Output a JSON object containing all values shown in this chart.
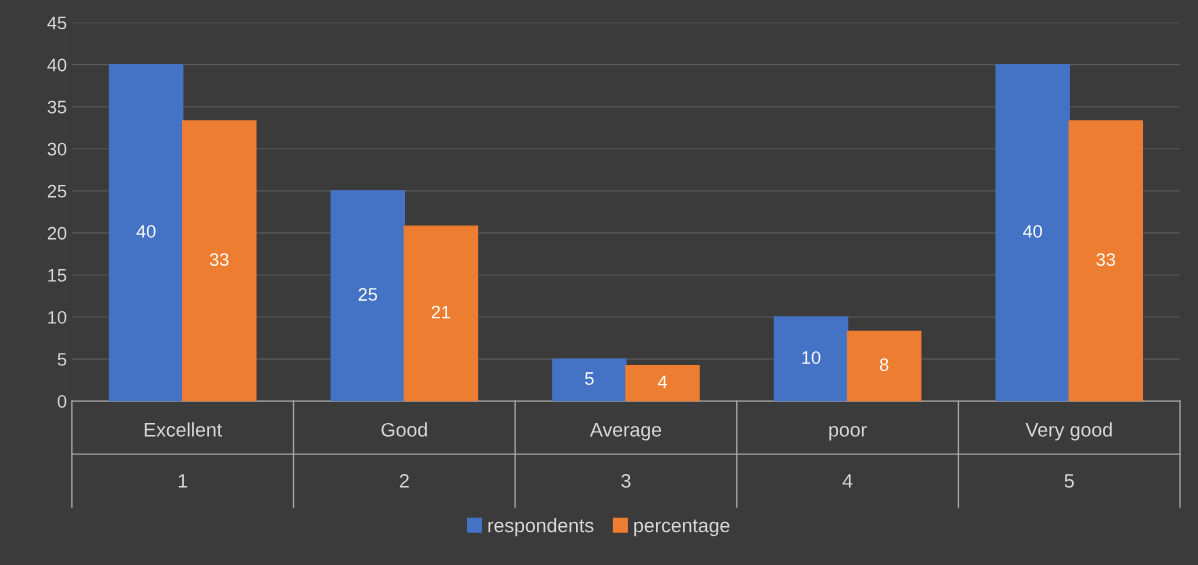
{
  "chart_data": {
    "type": "bar",
    "categories": [
      "Excellent\n1",
      "Good\n2",
      "Average\n3",
      "poor\n4",
      "Very good\n5"
    ],
    "series": [
      {
        "name": "respondents",
        "color": "#4472c4",
        "values": [
          40,
          25,
          5,
          10,
          40
        ],
        "value_labels": [
          "40",
          "25",
          "5",
          "10",
          "40"
        ]
      },
      {
        "name": "percentage",
        "color": "#ed7d31",
        "values": [
          33.3,
          20.8,
          4.2,
          8.3,
          33.3
        ],
        "value_labels": [
          "33",
          "21",
          "4",
          "8",
          "33"
        ]
      }
    ],
    "ylim": [
      0,
      45
    ],
    "yticks": [
      0,
      5,
      10,
      15,
      20,
      25,
      30,
      35,
      40,
      45
    ],
    "grid": "y",
    "legend": "bottom"
  }
}
